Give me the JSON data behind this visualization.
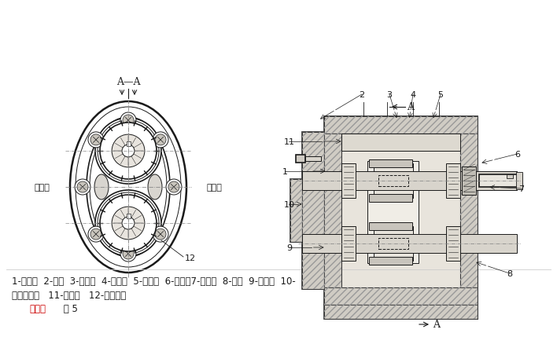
{
  "background_color": "#ffffff",
  "fig_width": 7.08,
  "fig_height": 4.39,
  "dpi": 100,
  "caption_line1": "1-后盖；  2-螺钉  3-齿轮；  4-泵体；  5-前盖；  6-油封；7-长轴；  8-销；  9-短轴；  10-",
  "caption_line2": "滚针轴承；   11-压盖；   12-泄油通槽",
  "caption_red": "外啮合",
  "caption_suffix": " 图 5",
  "lc": "#1a1a1a",
  "red_color": "#cc0000",
  "hatch_gray": "#999999",
  "face_light": "#f8f8f8",
  "face_hatch": "#e0ddd8",
  "face_dark": "#c8c4bc"
}
